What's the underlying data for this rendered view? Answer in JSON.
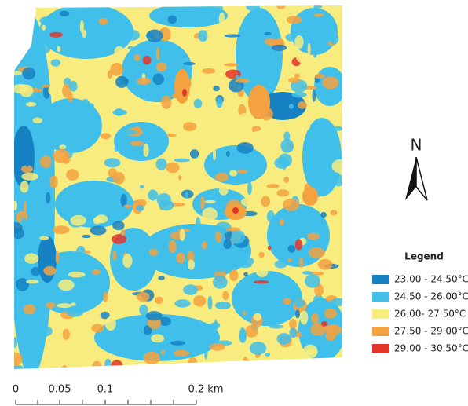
{
  "map": {
    "north_label": "N",
    "legend": {
      "title": "Legend",
      "items": [
        {
          "label": "23.00 - 24.50°C",
          "color": "#1681c3"
        },
        {
          "label": "24.50 - 26.00°C",
          "color": "#40bfeb"
        },
        {
          "label": "26.00- 27.50°C",
          "color": "#f7ec7d"
        },
        {
          "label": "27.50 - 29.00°C",
          "color": "#f4a23f"
        },
        {
          "label": "29.00 - 30.50°C",
          "color": "#e4352a"
        }
      ]
    },
    "scale_bar": {
      "labels": [
        "0",
        "0.05",
        "0.1",
        "0.2 km"
      ]
    }
  }
}
